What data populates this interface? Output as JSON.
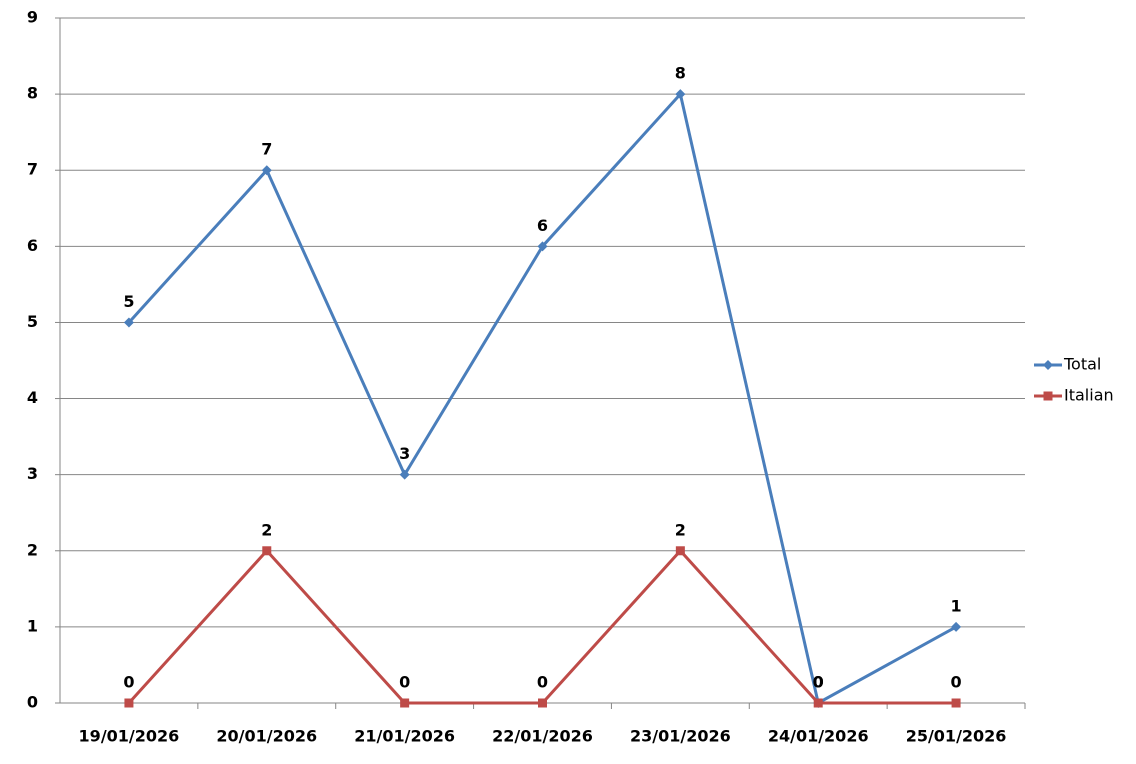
{
  "chart_data": {
    "type": "line",
    "categories": [
      "19/01/2026",
      "20/01/2026",
      "21/01/2026",
      "22/01/2026",
      "23/01/2026",
      "24/01/2026",
      "25/01/2026"
    ],
    "series": [
      {
        "name": "Total",
        "color": "#4a7ebb",
        "marker": "diamond",
        "values": [
          5,
          7,
          3,
          6,
          8,
          0,
          1
        ]
      },
      {
        "name": "Italian",
        "color": "#be4b48",
        "marker": "square",
        "values": [
          0,
          2,
          0,
          0,
          2,
          0,
          0
        ]
      }
    ],
    "ylim": [
      0,
      9
    ],
    "yticks": [
      0,
      1,
      2,
      3,
      4,
      5,
      6,
      7,
      8,
      9
    ],
    "grid": true,
    "legend": "right"
  }
}
